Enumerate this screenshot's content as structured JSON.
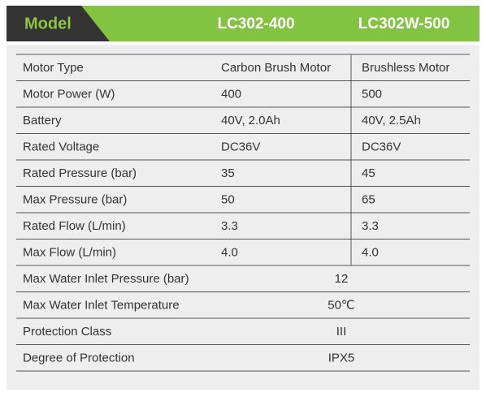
{
  "header": {
    "title": "Model",
    "models": [
      "LC302-400",
      "LC302W-500"
    ]
  },
  "table": {
    "rows": [
      [
        "Motor Type",
        "Carbon Brush Motor",
        "Brushless Motor"
      ],
      [
        "Motor Power (W)",
        "400",
        "500"
      ],
      [
        "Battery",
        "40V, 2.0Ah",
        "40V, 2.5Ah"
      ],
      [
        "Rated Voltage",
        "DC36V",
        "DC36V"
      ],
      [
        "Rated Pressure (bar)",
        "35",
        "45"
      ],
      [
        "Max Pressure (bar)",
        "50",
        "65"
      ],
      [
        "Rated Flow (L/min)",
        "3.3",
        "3.3"
      ],
      [
        "Max Flow (L/min)",
        "4.0",
        "4.0"
      ],
      [
        "Max Water Inlet Pressure (bar)",
        "12"
      ],
      [
        "Max Water Inlet Temperature",
        "50℃"
      ],
      [
        "Protection Class",
        "III"
      ],
      [
        "Degree of Protection",
        "IPX5"
      ]
    ]
  }
}
